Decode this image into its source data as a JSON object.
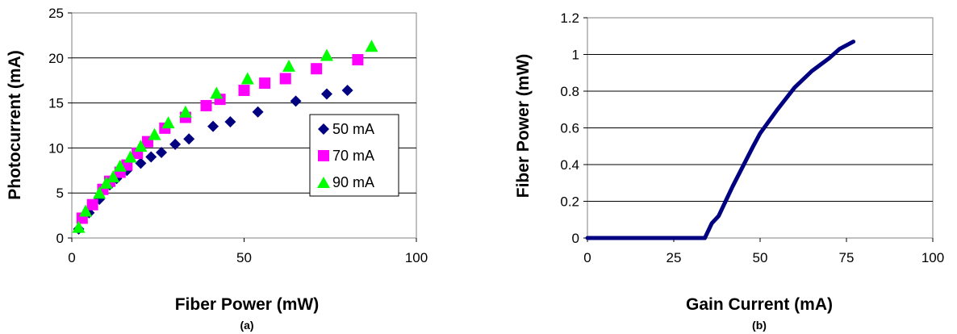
{
  "chart_data": [
    {
      "type": "scatter",
      "panel_label": "(a)",
      "xlabel": "Fiber Power (mW)",
      "ylabel": "Photocurrent (mA)",
      "xlim": [
        0,
        100
      ],
      "ylim": [
        0,
        25
      ],
      "x_ticks": [
        "0",
        "50",
        "100"
      ],
      "y_ticks": [
        "0",
        "5",
        "10",
        "15",
        "20",
        "25"
      ],
      "grid": "horizontal",
      "legend_placement": "right",
      "series": [
        {
          "name": "50 mA",
          "marker": "diamond",
          "color": "#000080",
          "x": [
            2,
            5,
            8,
            11,
            13,
            16,
            20,
            23,
            26,
            30,
            34,
            41,
            46,
            54,
            65,
            74,
            80
          ],
          "y": [
            1.0,
            2.8,
            4.3,
            5.9,
            6.6,
            7.5,
            8.3,
            9.0,
            9.5,
            10.4,
            11.0,
            12.4,
            12.9,
            14.0,
            15.2,
            16.0,
            16.4
          ]
        },
        {
          "name": "70 mA",
          "marker": "square",
          "color": "#FF00FF",
          "x": [
            3,
            6,
            9,
            11,
            14,
            16,
            19,
            22,
            27,
            33,
            39,
            43,
            50,
            56,
            62,
            71,
            83
          ],
          "y": [
            2.2,
            3.7,
            5.4,
            6.3,
            7.3,
            8.1,
            9.4,
            10.7,
            12.2,
            13.4,
            14.7,
            15.4,
            16.4,
            17.2,
            17.7,
            18.8,
            19.8
          ]
        },
        {
          "name": "90 mA",
          "marker": "triangle",
          "color": "#00FF00",
          "x": [
            2,
            4,
            8,
            10,
            12,
            14,
            17,
            20,
            24,
            28,
            33,
            42,
            51,
            63,
            74,
            87
          ],
          "y": [
            1.2,
            3.0,
            5.0,
            6.1,
            6.8,
            8.0,
            9.0,
            10.2,
            11.5,
            12.8,
            14.0,
            16.1,
            17.7,
            19.1,
            20.3,
            21.3
          ]
        }
      ]
    },
    {
      "type": "line",
      "panel_label": "(b)",
      "xlabel": "Gain Current (mA)",
      "ylabel": "Fiber Power (mW)",
      "xlim": [
        0,
        100
      ],
      "ylim": [
        0,
        1.2
      ],
      "x_ticks": [
        "0",
        "25",
        "50",
        "75",
        "100"
      ],
      "y_ticks": [
        "0",
        "0.2",
        "0.4",
        "0.6",
        "0.8",
        "1",
        "1.2"
      ],
      "grid": "horizontal",
      "series": [
        {
          "color": "#000080",
          "x": [
            0,
            10,
            20,
            30,
            34,
            35,
            36,
            38,
            40,
            42,
            45,
            48,
            50,
            55,
            60,
            65,
            70,
            73,
            77
          ],
          "y": [
            0,
            0,
            0,
            0,
            0,
            0.04,
            0.08,
            0.12,
            0.2,
            0.28,
            0.39,
            0.5,
            0.57,
            0.7,
            0.82,
            0.91,
            0.98,
            1.03,
            1.07
          ]
        }
      ]
    }
  ]
}
